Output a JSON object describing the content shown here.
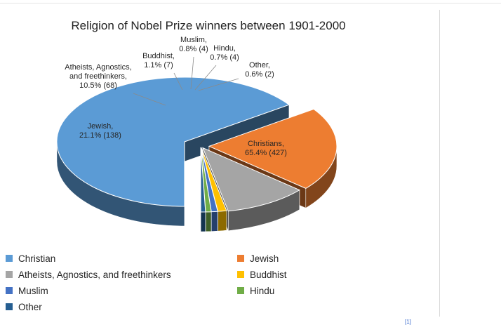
{
  "chart_data": {
    "type": "pie",
    "style": "3d-exploded",
    "title": "Religion of Nobel Prize winners between 1901-2000",
    "legend_position": "bottom",
    "slices": [
      {
        "legend": "Christian",
        "label_name": "Christians,",
        "label_value": "65.4% (427)",
        "percent": 65.4,
        "count": 427,
        "color": "#5b9bd5"
      },
      {
        "legend": "Jewish",
        "label_name": "Jewish,",
        "label_value": "21.1% (138)",
        "percent": 21.1,
        "count": 138,
        "color": "#ed7d31"
      },
      {
        "legend": "Atheists, Agnostics, and freethinkers",
        "label_name": "Atheists, Agnostics, and freethinkers,",
        "label_value": "10.5% (68)",
        "percent": 10.5,
        "count": 68,
        "color": "#a5a5a5"
      },
      {
        "legend": "Buddhist",
        "label_name": "Buddhist,",
        "label_value": "1.1% (7)",
        "percent": 1.1,
        "count": 7,
        "color": "#ffc000"
      },
      {
        "legend": "Muslim",
        "label_name": "Muslim,",
        "label_value": "0.8% (4)",
        "percent": 0.8,
        "count": 4,
        "color": "#4472c4"
      },
      {
        "legend": "Hindu",
        "label_name": "Hindu,",
        "label_value": "0.7% (4)",
        "percent": 0.7,
        "count": 4,
        "color": "#70ad47"
      },
      {
        "legend": "Other",
        "label_name": "Other,",
        "label_value": "0.6% (2)",
        "percent": 0.6,
        "count": 2,
        "color": "#255e91"
      }
    ]
  },
  "footnote": "[1]"
}
